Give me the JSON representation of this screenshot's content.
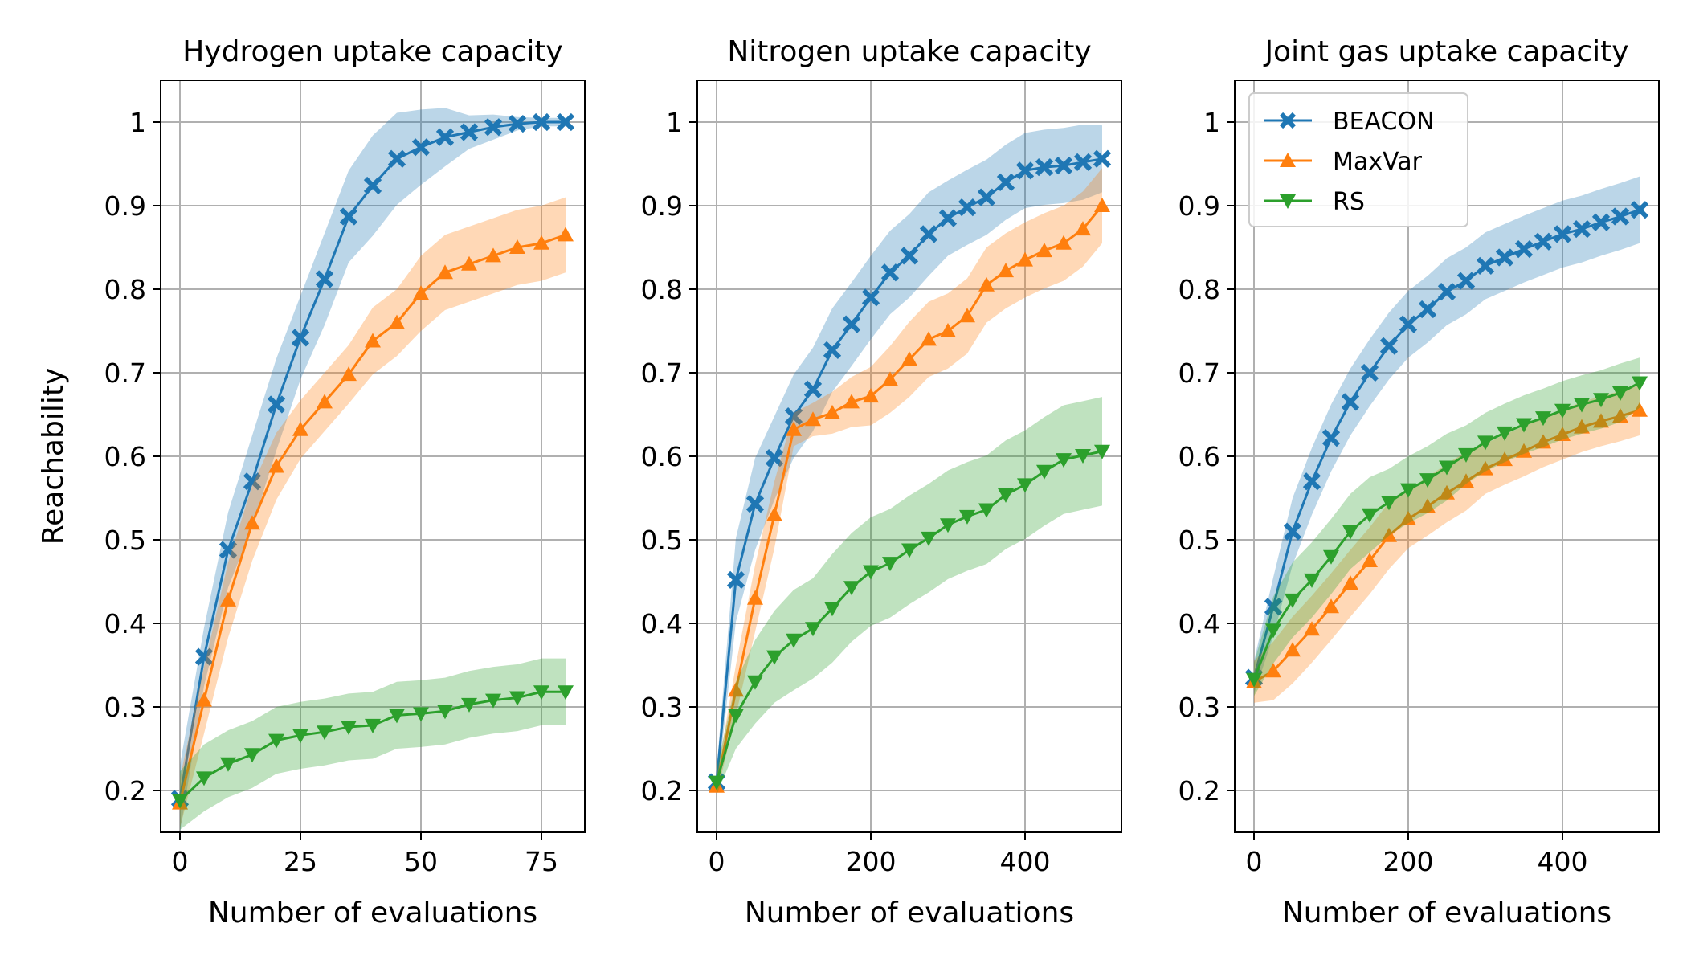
{
  "chart_data": [
    {
      "type": "line",
      "title": "Hydrogen uptake capacity",
      "xlabel": "Number of evaluations",
      "ylabel": "Reachability",
      "xlim": [
        -4,
        84
      ],
      "ylim": [
        0.15,
        1.05
      ],
      "xticks": [
        0,
        25,
        50,
        75
      ],
      "yticks": [
        0.2,
        0.3,
        0.4,
        0.5,
        0.6,
        0.7,
        0.8,
        0.9,
        1.0
      ],
      "grid": true,
      "series": [
        {
          "name": "BEACON",
          "color": "#1f77b4",
          "marker": "x",
          "x": [
            0,
            5,
            10,
            15,
            20,
            25,
            30,
            35,
            40,
            45,
            50,
            55,
            60,
            65,
            70,
            75,
            80
          ],
          "y": [
            0.19,
            0.36,
            0.488,
            0.57,
            0.662,
            0.742,
            0.812,
            0.887,
            0.924,
            0.956,
            0.97,
            0.982,
            0.988,
            0.994,
            0.998,
            1.0,
            1.0
          ],
          "band": [
            0.04,
            0.035,
            0.045,
            0.055,
            0.055,
            0.05,
            0.055,
            0.055,
            0.06,
            0.055,
            0.045,
            0.035,
            0.02,
            0.015,
            0.008,
            0.005,
            0.005
          ]
        },
        {
          "name": "MaxVar",
          "color": "#ff7f0e",
          "marker": "^",
          "x": [
            0,
            5,
            10,
            15,
            20,
            25,
            30,
            35,
            40,
            45,
            50,
            55,
            60,
            65,
            70,
            75,
            80
          ],
          "y": [
            0.185,
            0.308,
            0.428,
            0.52,
            0.588,
            0.632,
            0.665,
            0.698,
            0.738,
            0.76,
            0.795,
            0.82,
            0.83,
            0.84,
            0.85,
            0.855,
            0.865
          ],
          "band": [
            0.03,
            0.04,
            0.045,
            0.045,
            0.04,
            0.035,
            0.035,
            0.035,
            0.04,
            0.04,
            0.045,
            0.045,
            0.045,
            0.045,
            0.045,
            0.045,
            0.045
          ]
        },
        {
          "name": "RS",
          "color": "#2ca02c",
          "marker": "v",
          "x": [
            0,
            5,
            10,
            15,
            20,
            25,
            30,
            35,
            40,
            45,
            50,
            55,
            60,
            65,
            70,
            75,
            80
          ],
          "y": [
            0.188,
            0.215,
            0.232,
            0.243,
            0.26,
            0.266,
            0.27,
            0.276,
            0.278,
            0.29,
            0.292,
            0.295,
            0.303,
            0.308,
            0.311,
            0.318,
            0.318
          ],
          "band": [
            0.035,
            0.04,
            0.04,
            0.04,
            0.04,
            0.04,
            0.04,
            0.04,
            0.04,
            0.04,
            0.04,
            0.04,
            0.04,
            0.04,
            0.04,
            0.04,
            0.04
          ]
        }
      ]
    },
    {
      "type": "line",
      "title": "Nitrogen uptake capacity",
      "xlabel": "Number of evaluations",
      "ylabel": "",
      "xlim": [
        -25,
        525
      ],
      "ylim": [
        0.15,
        1.05
      ],
      "xticks": [
        0,
        200,
        400
      ],
      "yticks": [
        0.2,
        0.3,
        0.4,
        0.5,
        0.6,
        0.7,
        0.8,
        0.9,
        1.0
      ],
      "grid": true,
      "series": [
        {
          "name": "BEACON",
          "color": "#1f77b4",
          "marker": "x",
          "x": [
            0,
            25,
            50,
            75,
            100,
            125,
            150,
            175,
            200,
            225,
            250,
            275,
            300,
            325,
            350,
            375,
            400,
            425,
            450,
            475,
            500
          ],
          "y": [
            0.21,
            0.452,
            0.543,
            0.598,
            0.648,
            0.68,
            0.727,
            0.758,
            0.79,
            0.82,
            0.84,
            0.866,
            0.885,
            0.898,
            0.91,
            0.928,
            0.942,
            0.946,
            0.948,
            0.952,
            0.956
          ],
          "band": [
            0.015,
            0.05,
            0.055,
            0.05,
            0.05,
            0.05,
            0.05,
            0.05,
            0.05,
            0.05,
            0.05,
            0.05,
            0.045,
            0.045,
            0.045,
            0.045,
            0.045,
            0.045,
            0.045,
            0.045,
            0.04
          ]
        },
        {
          "name": "MaxVar",
          "color": "#ff7f0e",
          "marker": "^",
          "x": [
            0,
            25,
            50,
            75,
            100,
            125,
            150,
            175,
            200,
            225,
            250,
            275,
            300,
            325,
            350,
            375,
            400,
            425,
            450,
            475,
            500
          ],
          "y": [
            0.205,
            0.32,
            0.43,
            0.53,
            0.632,
            0.644,
            0.652,
            0.665,
            0.672,
            0.692,
            0.716,
            0.74,
            0.75,
            0.768,
            0.805,
            0.822,
            0.835,
            0.846,
            0.855,
            0.872,
            0.9
          ],
          "band": [
            0.01,
            0.03,
            0.04,
            0.04,
            0.02,
            0.02,
            0.025,
            0.03,
            0.035,
            0.04,
            0.045,
            0.045,
            0.045,
            0.045,
            0.045,
            0.045,
            0.045,
            0.045,
            0.045,
            0.045,
            0.045
          ]
        },
        {
          "name": "RS",
          "color": "#2ca02c",
          "marker": "v",
          "x": [
            0,
            25,
            50,
            75,
            100,
            125,
            150,
            175,
            200,
            225,
            250,
            275,
            300,
            325,
            350,
            375,
            400,
            425,
            450,
            475,
            500
          ],
          "y": [
            0.21,
            0.29,
            0.33,
            0.36,
            0.38,
            0.394,
            0.418,
            0.443,
            0.462,
            0.472,
            0.488,
            0.502,
            0.518,
            0.528,
            0.536,
            0.554,
            0.566,
            0.582,
            0.596,
            0.601,
            0.606
          ],
          "band": [
            0.015,
            0.04,
            0.05,
            0.055,
            0.06,
            0.06,
            0.065,
            0.065,
            0.065,
            0.065,
            0.065,
            0.065,
            0.065,
            0.065,
            0.065,
            0.065,
            0.065,
            0.065,
            0.065,
            0.065,
            0.065
          ]
        }
      ]
    },
    {
      "type": "line",
      "title": "Joint gas uptake capacity",
      "xlabel": "Number of evaluations",
      "ylabel": "",
      "xlim": [
        -25,
        525
      ],
      "ylim": [
        0.15,
        1.05
      ],
      "xticks": [
        0,
        200,
        400
      ],
      "yticks": [
        0.2,
        0.3,
        0.4,
        0.5,
        0.6,
        0.7,
        0.8,
        0.9,
        1.0
      ],
      "grid": true,
      "legend": {
        "position": "top-left",
        "entries": [
          "BEACON",
          "MaxVar",
          "RS"
        ]
      },
      "series": [
        {
          "name": "BEACON",
          "color": "#1f77b4",
          "marker": "x",
          "x": [
            0,
            25,
            50,
            75,
            100,
            125,
            150,
            175,
            200,
            225,
            250,
            275,
            300,
            325,
            350,
            375,
            400,
            425,
            450,
            475,
            500
          ],
          "y": [
            0.335,
            0.42,
            0.51,
            0.57,
            0.622,
            0.665,
            0.7,
            0.732,
            0.758,
            0.776,
            0.797,
            0.81,
            0.828,
            0.838,
            0.848,
            0.857,
            0.866,
            0.872,
            0.88,
            0.887,
            0.895
          ],
          "band": [
            0.02,
            0.035,
            0.04,
            0.04,
            0.04,
            0.04,
            0.04,
            0.04,
            0.04,
            0.04,
            0.04,
            0.04,
            0.04,
            0.04,
            0.04,
            0.04,
            0.04,
            0.04,
            0.04,
            0.04,
            0.04
          ]
        },
        {
          "name": "MaxVar",
          "color": "#ff7f0e",
          "marker": "^",
          "x": [
            0,
            25,
            50,
            75,
            100,
            125,
            150,
            175,
            200,
            225,
            250,
            275,
            300,
            325,
            350,
            375,
            400,
            425,
            450,
            475,
            500
          ],
          "y": [
            0.33,
            0.343,
            0.368,
            0.393,
            0.42,
            0.448,
            0.475,
            0.505,
            0.525,
            0.54,
            0.556,
            0.57,
            0.585,
            0.596,
            0.606,
            0.617,
            0.626,
            0.635,
            0.642,
            0.648,
            0.655
          ],
          "band": [
            0.025,
            0.035,
            0.04,
            0.04,
            0.04,
            0.04,
            0.04,
            0.04,
            0.035,
            0.035,
            0.035,
            0.035,
            0.03,
            0.03,
            0.03,
            0.03,
            0.03,
            0.03,
            0.03,
            0.03,
            0.03
          ]
        },
        {
          "name": "RS",
          "color": "#2ca02c",
          "marker": "v",
          "x": [
            0,
            25,
            50,
            75,
            100,
            125,
            150,
            175,
            200,
            225,
            250,
            275,
            300,
            325,
            350,
            375,
            400,
            425,
            450,
            475,
            500
          ],
          "y": [
            0.333,
            0.392,
            0.428,
            0.452,
            0.48,
            0.51,
            0.53,
            0.545,
            0.56,
            0.572,
            0.587,
            0.602,
            0.617,
            0.628,
            0.638,
            0.646,
            0.655,
            0.662,
            0.668,
            0.676,
            0.688
          ],
          "band": [
            0.02,
            0.04,
            0.045,
            0.045,
            0.045,
            0.045,
            0.045,
            0.04,
            0.04,
            0.04,
            0.04,
            0.035,
            0.035,
            0.035,
            0.035,
            0.035,
            0.035,
            0.035,
            0.035,
            0.035,
            0.03
          ]
        }
      ]
    }
  ]
}
